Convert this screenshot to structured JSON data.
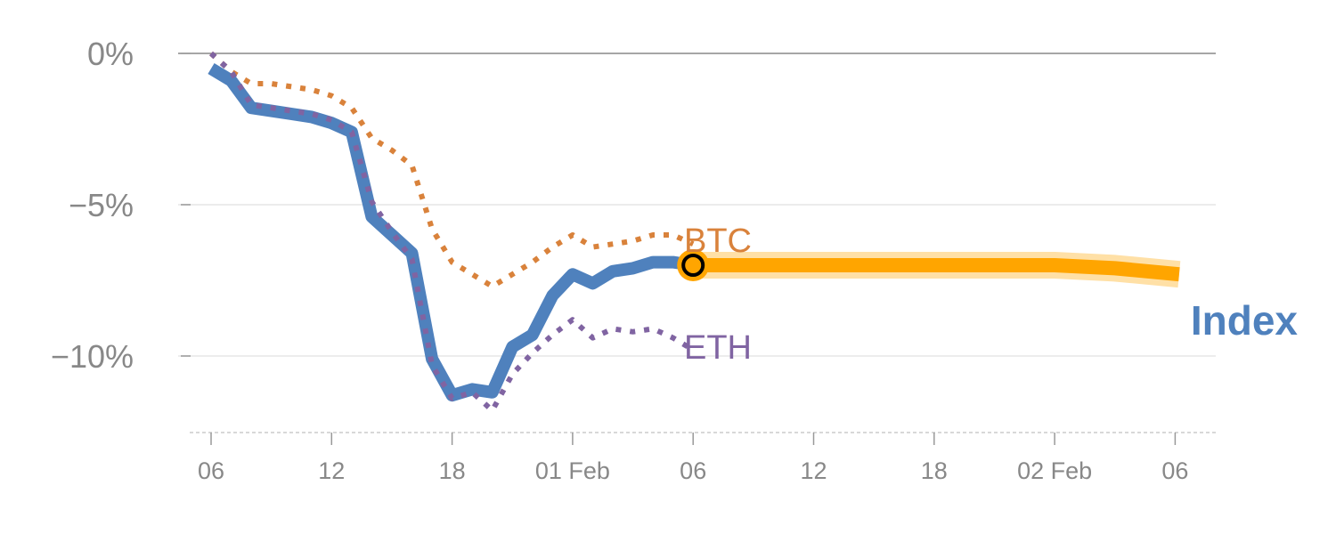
{
  "chart_data": {
    "type": "line",
    "title": "",
    "xlabel": "",
    "ylabel": "",
    "y_unit": "%",
    "ylim": [
      -12.5,
      0
    ],
    "grid": true,
    "colors": {
      "Index": "#4f81bd",
      "BTC": "#d9823b",
      "ETH": "#8064a2",
      "forecast": "#ffa500",
      "grid": "#e6e6e6",
      "zero_line": "#888888",
      "text": "#888888"
    },
    "x_ticks": [
      {
        "x": 6,
        "label": "06"
      },
      {
        "x": 12,
        "label": "12"
      },
      {
        "x": 18,
        "label": "18"
      },
      {
        "x": 24,
        "label": "01 Feb"
      },
      {
        "x": 30,
        "label": "06"
      },
      {
        "x": 36,
        "label": "12"
      },
      {
        "x": 42,
        "label": "18"
      },
      {
        "x": 48,
        "label": "02 Feb"
      },
      {
        "x": 54,
        "label": "06"
      }
    ],
    "y_ticks": [
      {
        "y": 0,
        "label": "0%"
      },
      {
        "y": -5,
        "label": "−5%"
      },
      {
        "y": -10,
        "label": "−10%"
      }
    ],
    "series": [
      {
        "name": "Index",
        "style": "solid",
        "label_text": "Index",
        "x": [
          6,
          7,
          8,
          9,
          10,
          11,
          12,
          13,
          14,
          15,
          16,
          17,
          18,
          19,
          20,
          21,
          22,
          23,
          24,
          25,
          26,
          27,
          28,
          29,
          30
        ],
        "y": [
          -0.5,
          -0.9,
          -1.8,
          -1.9,
          -2.0,
          -2.1,
          -2.3,
          -2.6,
          -5.4,
          -6.0,
          -6.6,
          -10.1,
          -11.3,
          -11.1,
          -11.2,
          -9.7,
          -9.3,
          -8.0,
          -7.3,
          -7.6,
          -7.2,
          -7.1,
          -6.9,
          -6.9,
          -7.0
        ]
      },
      {
        "name": "BTC",
        "style": "dotted",
        "label_text": "BTC",
        "x": [
          6,
          7,
          8,
          9,
          10,
          11,
          12,
          13,
          14,
          15,
          16,
          17,
          18,
          19,
          20,
          21,
          22,
          23,
          24,
          25,
          26,
          27,
          28,
          29,
          30
        ],
        "y": [
          0.0,
          -0.6,
          -1.0,
          -1.0,
          -1.1,
          -1.2,
          -1.4,
          -1.8,
          -2.8,
          -3.2,
          -3.7,
          -5.8,
          -6.9,
          -7.3,
          -7.7,
          -7.3,
          -6.9,
          -6.4,
          -6.0,
          -6.4,
          -6.3,
          -6.2,
          -6.0,
          -6.0,
          -6.3
        ]
      },
      {
        "name": "ETH",
        "style": "dotted",
        "label_text": "ETH",
        "x": [
          6,
          7,
          8,
          9,
          10,
          11,
          12,
          13,
          14,
          15,
          16,
          17,
          18,
          19,
          20,
          21,
          22,
          23,
          24,
          25,
          26,
          27,
          28,
          29,
          30
        ],
        "y": [
          0.0,
          -0.6,
          -1.7,
          -1.8,
          -1.9,
          -2.0,
          -2.2,
          -2.6,
          -4.9,
          -5.9,
          -6.8,
          -10.3,
          -11.4,
          -11.2,
          -11.8,
          -10.6,
          -9.9,
          -9.3,
          -8.8,
          -9.4,
          -9.1,
          -9.2,
          -9.1,
          -9.4,
          -9.8
        ]
      }
    ],
    "forecast": {
      "name": "Index",
      "x": [
        30,
        36,
        42,
        48,
        51,
        54.2
      ],
      "y": [
        -7.0,
        -7.0,
        -7.0,
        -7.0,
        -7.1,
        -7.3
      ],
      "start_marker": {
        "x": 30,
        "y": -7.0
      }
    }
  }
}
